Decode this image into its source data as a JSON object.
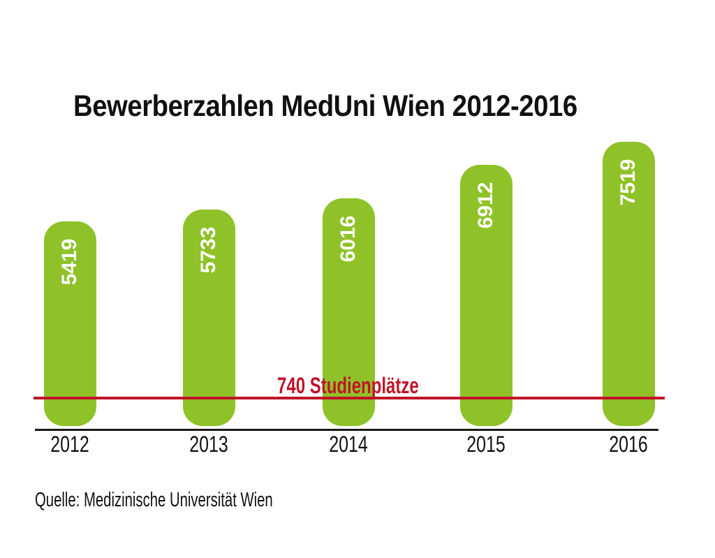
{
  "chart_data": {
    "type": "bar",
    "title": "Bewerberzahlen MedUni Wien 2012-2016",
    "categories": [
      "2012",
      "2013",
      "2014",
      "2015",
      "2016"
    ],
    "values": [
      5419,
      5733,
      6016,
      6912,
      7519
    ],
    "reference_line": {
      "value": 740,
      "label": "740 Studienplätze"
    },
    "source": "Quelle: Medizinische Universität Wien",
    "xlabel": "",
    "ylabel": "",
    "ylim": [
      0,
      7519
    ],
    "grid": false,
    "legend": false,
    "value_labels_inside_bars": true,
    "value_label_orientation": "vertical-bottom-to-top",
    "colors": {
      "bar": "#8ec228",
      "bar_value_text": "#ffffff",
      "reference": "#c01428",
      "title_text": "#111111",
      "axis_line": "#1a1a1a",
      "tick_text": "#111111",
      "source_text": "#111111"
    }
  }
}
